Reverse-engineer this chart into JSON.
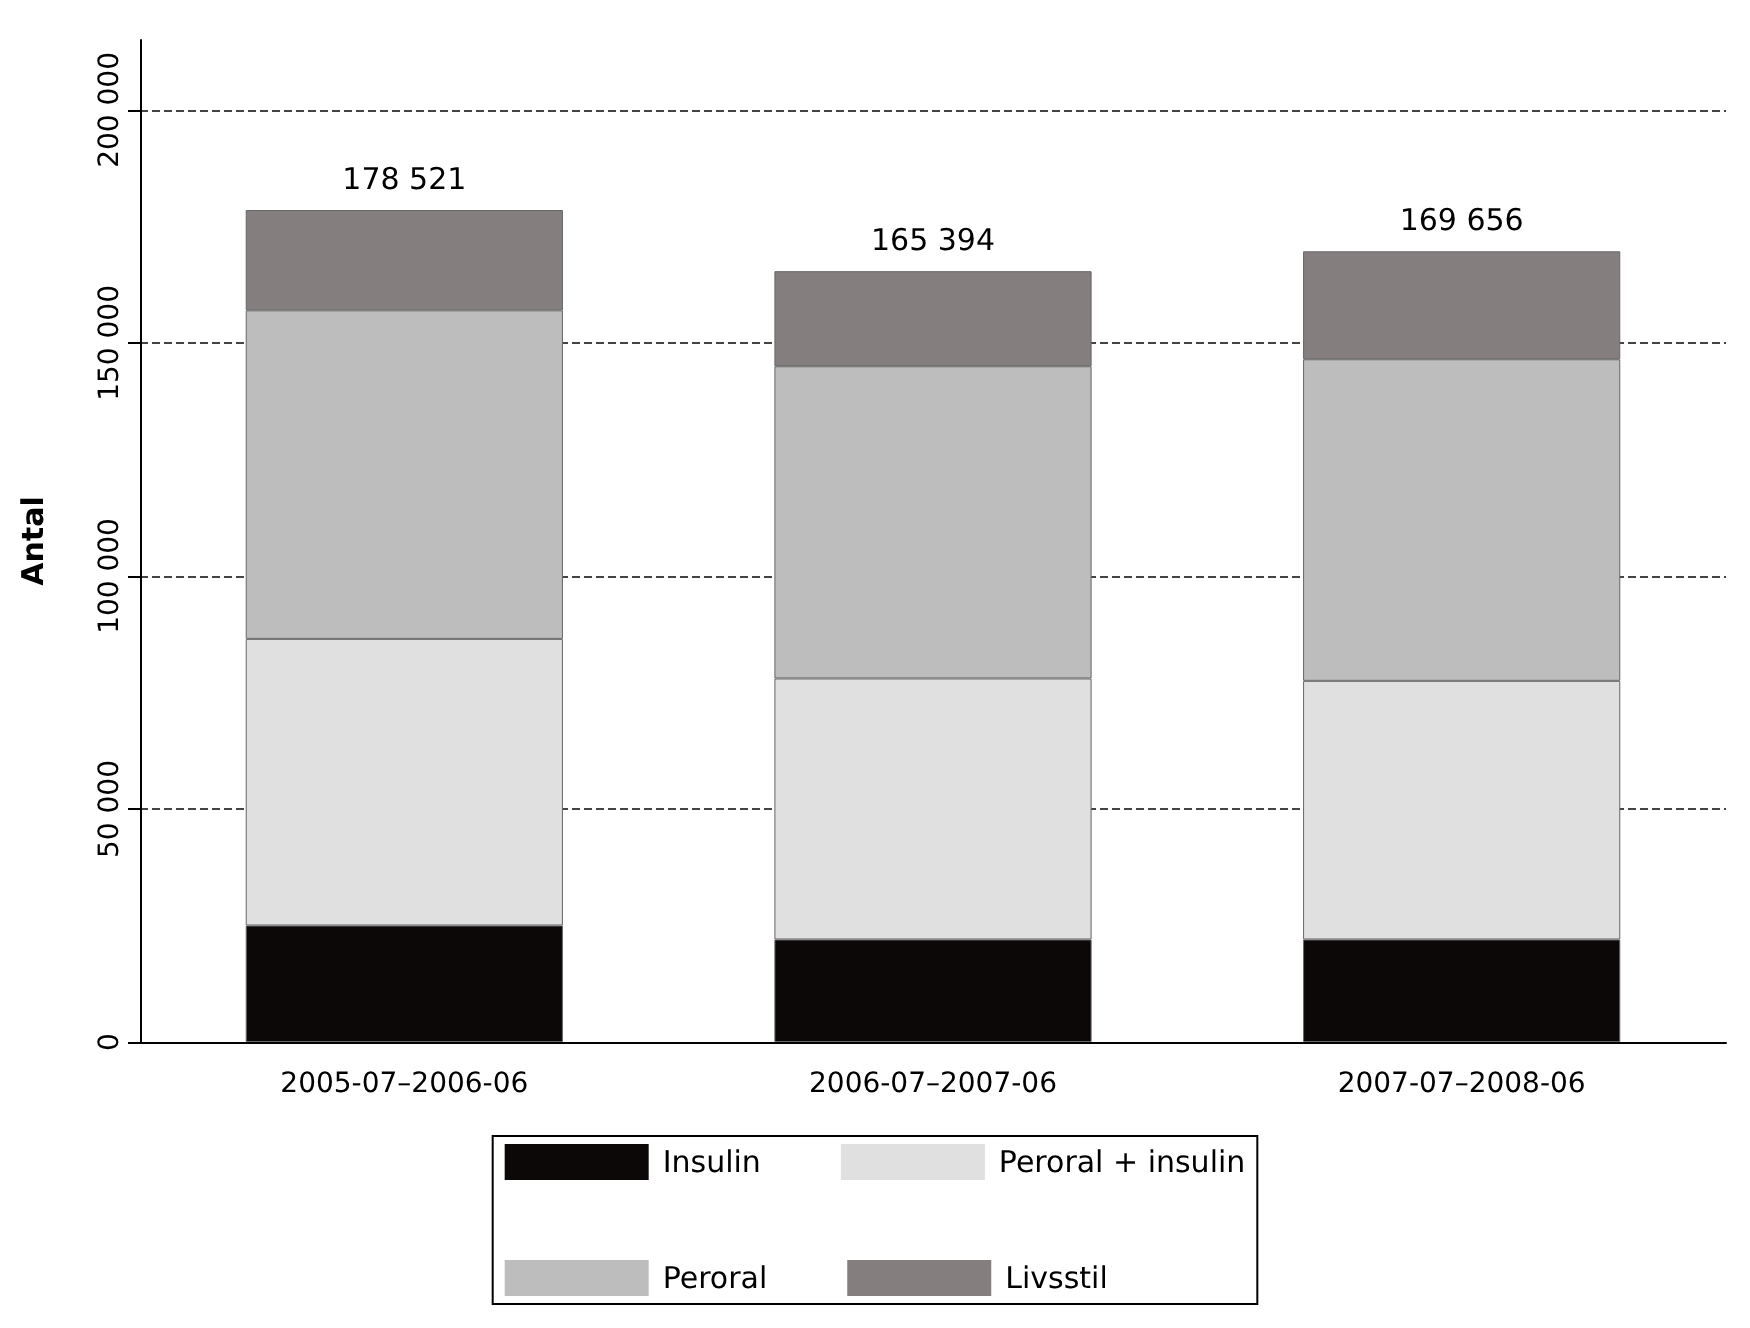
{
  "chart_data": {
    "type": "bar",
    "stacked": true,
    "ylabel": "Antal",
    "categories": [
      "2005-07–2006-06",
      "2006-07–2007-06",
      "2007-07–2008-06"
    ],
    "series": [
      {
        "name": "Insulin",
        "color": "#0d0808",
        "values": [
          25000,
          22000,
          22000
        ]
      },
      {
        "name": "Peroral + insulin",
        "color": "#e0e0e0",
        "values": [
          61500,
          56000,
          55500
        ]
      },
      {
        "name": "Peroral",
        "color": "#bdbdbd",
        "values": [
          70500,
          67000,
          69000
        ]
      },
      {
        "name": "Livsstil",
        "color": "#857e7f",
        "values": [
          21521,
          20394,
          23156
        ]
      }
    ],
    "totals": [
      "178 521",
      "165 394",
      "169 656"
    ],
    "ylim": [
      0,
      215000
    ],
    "yticks": [
      {
        "value": 0,
        "label": "0"
      },
      {
        "value": 50000,
        "label": "50 000"
      },
      {
        "value": 100000,
        "label": "100 000"
      },
      {
        "value": 150000,
        "label": "150 000"
      },
      {
        "value": 200000,
        "label": "200 000"
      }
    ],
    "grid": "y",
    "legend": "bottom"
  }
}
